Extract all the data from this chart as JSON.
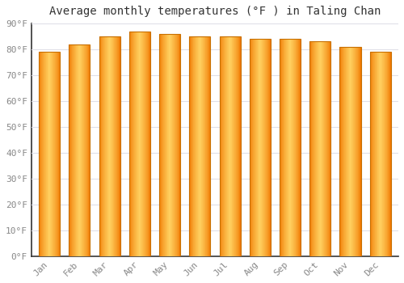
{
  "title": "Average monthly temperatures (°F ) in Taling Chan",
  "months": [
    "Jan",
    "Feb",
    "Mar",
    "Apr",
    "May",
    "Jun",
    "Jul",
    "Aug",
    "Sep",
    "Oct",
    "Nov",
    "Dec"
  ],
  "values": [
    79,
    82,
    85,
    87,
    86,
    85,
    85,
    84,
    84,
    83,
    81,
    79
  ],
  "bar_color_main": "#FFA500",
  "bar_color_light": "#FFD060",
  "bar_color_dark": "#F07800",
  "ylim": [
    0,
    90
  ],
  "yticks": [
    0,
    10,
    20,
    30,
    40,
    50,
    60,
    70,
    80,
    90
  ],
  "ytick_labels": [
    "0°F",
    "10°F",
    "20°F",
    "30°F",
    "40°F",
    "50°F",
    "60°F",
    "70°F",
    "80°F",
    "90°F"
  ],
  "background_color": "#FFFFFF",
  "plot_bg_color": "#FFFFFF",
  "grid_color": "#E0E0E8",
  "bar_edge_color": "#C87000",
  "title_fontsize": 10,
  "tick_fontsize": 8,
  "bar_width": 0.7
}
